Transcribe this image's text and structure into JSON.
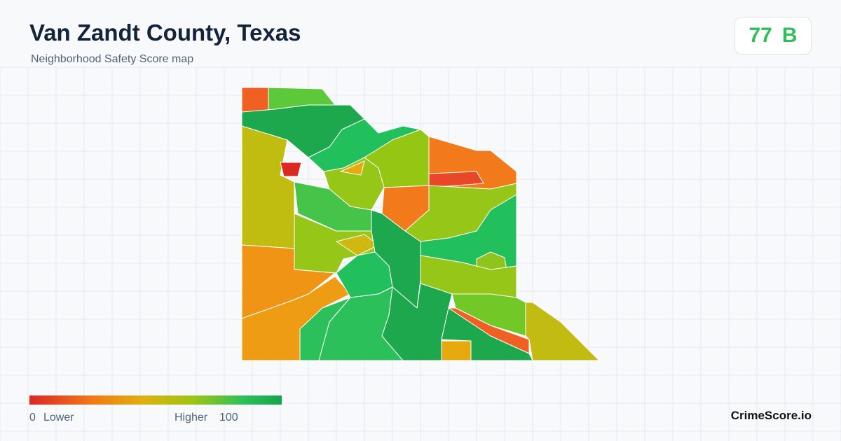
{
  "header": {
    "title": "Van Zandt County, Texas",
    "subtitle": "Neighborhood Safety Score map"
  },
  "score": {
    "value": 77,
    "grade": "B"
  },
  "legend": {
    "min": 0,
    "min_label": "Lower",
    "max_label": "Higher",
    "max": 100
  },
  "brand": "CrimeScore.io"
}
